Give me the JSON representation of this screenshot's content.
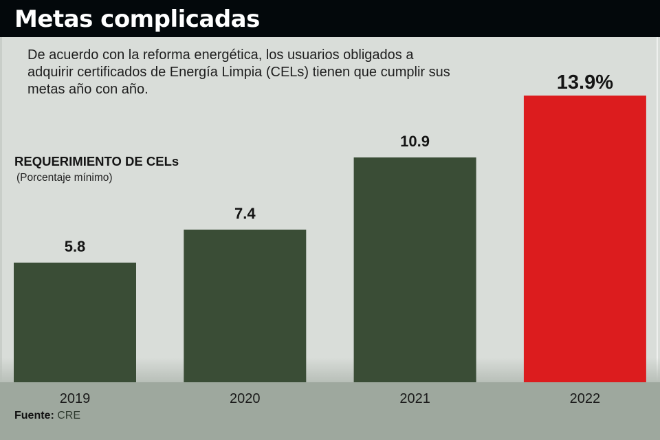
{
  "header": {
    "title": "Metas complicadas"
  },
  "intro": {
    "lines": [
      "De acuerdo con la reforma energética, los usuarios obligados a",
      "adquirir certificados de Energía Limpia (CELs) tienen que cumplir sus",
      "metas año con año."
    ]
  },
  "colors": {
    "header_bg": "#03080b",
    "panel_bg": "#d9ddd9",
    "footer_bg": "#9ea89e",
    "bar_default": "#3a4d36",
    "bar_highlight": "#dc1c1e"
  },
  "chart_data": {
    "type": "bar",
    "title": "REQUERIMIENTO DE CELs",
    "subtitle": "(Porcentaje mínimo)",
    "xlabel": "",
    "ylabel": "",
    "categories": [
      "2019",
      "2020",
      "2021",
      "2022"
    ],
    "values": [
      5.8,
      7.4,
      10.9,
      13.9
    ],
    "data_labels": [
      "5.8",
      "7.4",
      "10.9",
      "13.9%"
    ],
    "highlight_index": 3,
    "ylim": [
      0,
      13.9
    ],
    "grid": false,
    "legend": "none"
  },
  "footer": {
    "source_label": "Fuente:",
    "source_value": "CRE"
  }
}
